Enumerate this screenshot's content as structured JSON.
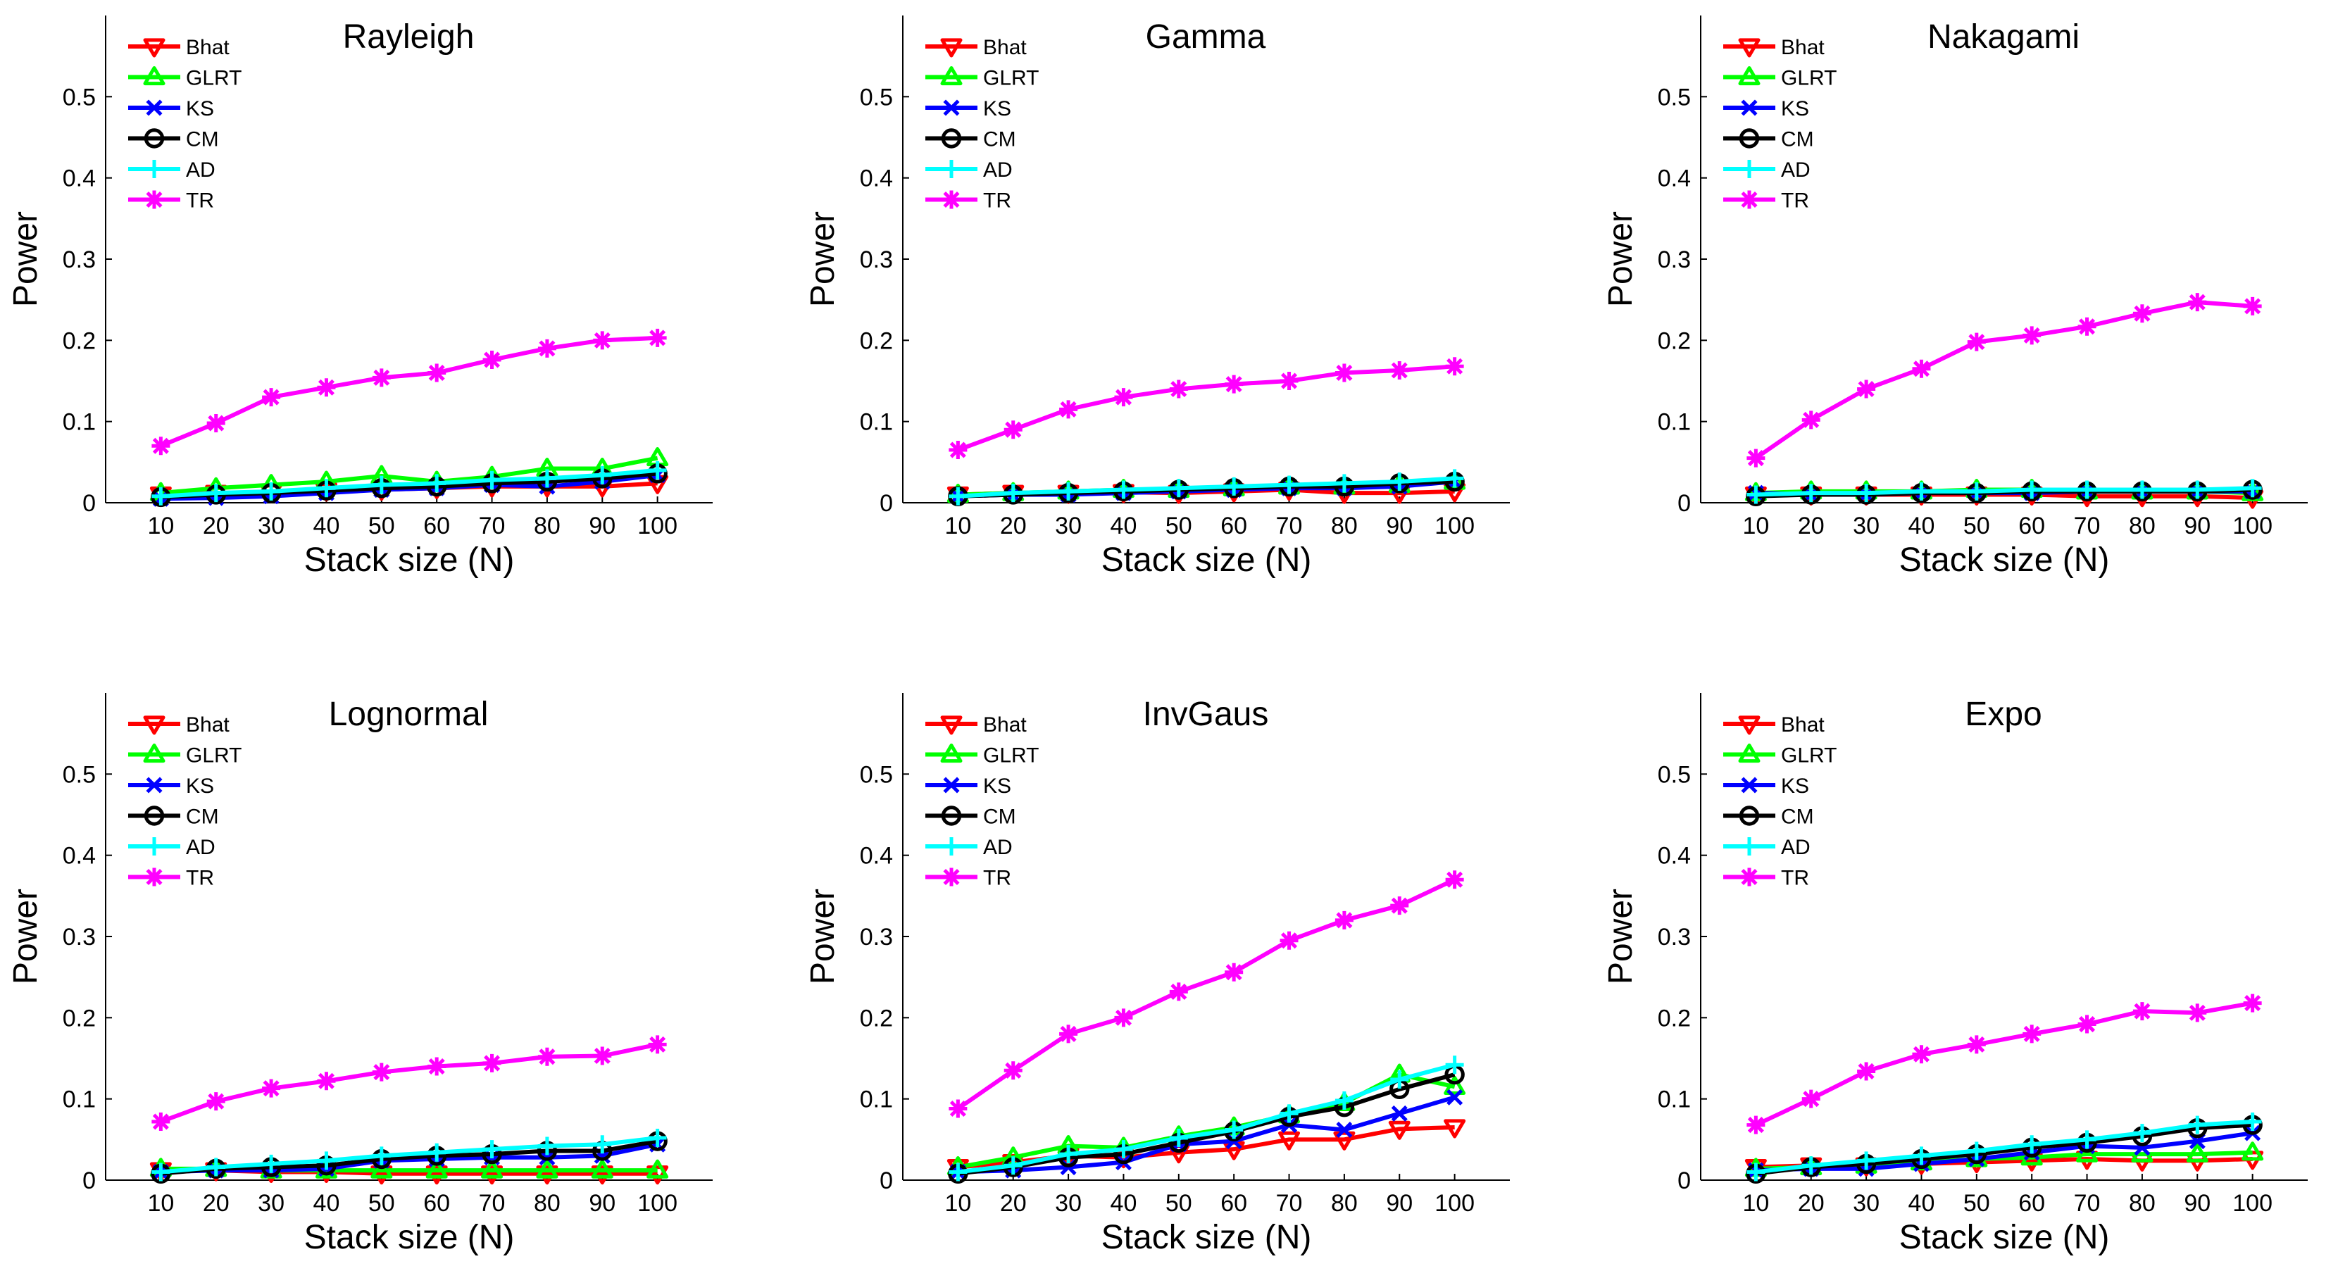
{
  "chart_data": [
    {
      "type": "line",
      "title": "Rayleigh",
      "xlabel": "Stack size (N)",
      "ylabel": "Power",
      "x": [
        10,
        20,
        30,
        40,
        50,
        60,
        70,
        80,
        90,
        100
      ],
      "xlim": [
        0,
        110
      ],
      "ylim": [
        0,
        0.6
      ],
      "yticks": [
        0,
        0.1,
        0.2,
        0.3,
        0.4,
        0.5
      ],
      "ytick_labels": [
        "0",
        "0.1",
        "0.2",
        "0.3",
        "0.4",
        "0.5"
      ],
      "legend_position": "top-left",
      "series": [
        {
          "name": "Bhat",
          "color": "#ff0000",
          "marker": "triangle-down",
          "values": [
            0.01,
            0.012,
            0.013,
            0.015,
            0.016,
            0.018,
            0.02,
            0.02,
            0.02,
            0.024
          ]
        },
        {
          "name": "GLRT",
          "color": "#00ff00",
          "marker": "triangle-up",
          "values": [
            0.012,
            0.018,
            0.022,
            0.026,
            0.033,
            0.026,
            0.032,
            0.042,
            0.042,
            0.055
          ]
        },
        {
          "name": "KS",
          "color": "#0000ff",
          "marker": "x",
          "values": [
            0.005,
            0.006,
            0.008,
            0.012,
            0.016,
            0.018,
            0.022,
            0.02,
            0.026,
            0.034
          ]
        },
        {
          "name": "CM",
          "color": "#000000",
          "marker": "circle",
          "values": [
            0.007,
            0.01,
            0.012,
            0.015,
            0.018,
            0.02,
            0.024,
            0.026,
            0.03,
            0.036
          ]
        },
        {
          "name": "AD",
          "color": "#00ffff",
          "marker": "plus",
          "values": [
            0.008,
            0.012,
            0.014,
            0.018,
            0.022,
            0.024,
            0.028,
            0.03,
            0.034,
            0.04
          ]
        },
        {
          "name": "TR",
          "color": "#ff00ff",
          "marker": "star",
          "values": [
            0.07,
            0.098,
            0.13,
            0.142,
            0.154,
            0.16,
            0.176,
            0.19,
            0.2,
            0.203
          ]
        }
      ]
    },
    {
      "type": "line",
      "title": "Gamma",
      "xlabel": "Stack size (N)",
      "ylabel": "Power",
      "x": [
        10,
        20,
        30,
        40,
        50,
        60,
        70,
        80,
        90,
        100
      ],
      "xlim": [
        0,
        110
      ],
      "ylim": [
        0,
        0.6
      ],
      "yticks": [
        0,
        0.1,
        0.2,
        0.3,
        0.4,
        0.5
      ],
      "ytick_labels": [
        "0",
        "0.1",
        "0.2",
        "0.3",
        "0.4",
        "0.5"
      ],
      "legend_position": "top-left",
      "series": [
        {
          "name": "Bhat",
          "color": "#ff0000",
          "marker": "triangle-down",
          "values": [
            0.01,
            0.012,
            0.012,
            0.013,
            0.012,
            0.014,
            0.016,
            0.012,
            0.012,
            0.014
          ]
        },
        {
          "name": "GLRT",
          "color": "#00ff00",
          "marker": "triangle-up",
          "values": [
            0.01,
            0.012,
            0.014,
            0.016,
            0.016,
            0.018,
            0.02,
            0.02,
            0.022,
            0.026
          ]
        },
        {
          "name": "KS",
          "color": "#0000ff",
          "marker": "x",
          "values": [
            0.008,
            0.01,
            0.01,
            0.012,
            0.014,
            0.016,
            0.018,
            0.018,
            0.02,
            0.026
          ]
        },
        {
          "name": "CM",
          "color": "#000000",
          "marker": "circle",
          "values": [
            0.008,
            0.01,
            0.012,
            0.014,
            0.016,
            0.018,
            0.02,
            0.02,
            0.024,
            0.026
          ]
        },
        {
          "name": "AD",
          "color": "#00ffff",
          "marker": "plus",
          "values": [
            0.008,
            0.012,
            0.014,
            0.016,
            0.018,
            0.02,
            0.022,
            0.024,
            0.026,
            0.03
          ]
        },
        {
          "name": "TR",
          "color": "#ff00ff",
          "marker": "star",
          "values": [
            0.065,
            0.09,
            0.115,
            0.13,
            0.14,
            0.146,
            0.15,
            0.16,
            0.163,
            0.168
          ]
        }
      ]
    },
    {
      "type": "line",
      "title": "Nakagami",
      "xlabel": "Stack size (N)",
      "ylabel": "Power",
      "x": [
        10,
        20,
        30,
        40,
        50,
        60,
        70,
        80,
        90,
        100
      ],
      "xlim": [
        0,
        110
      ],
      "ylim": [
        0,
        0.6
      ],
      "yticks": [
        0,
        0.1,
        0.2,
        0.3,
        0.4,
        0.5
      ],
      "ytick_labels": [
        "0",
        "0.1",
        "0.2",
        "0.3",
        "0.4",
        "0.5"
      ],
      "legend_position": "top-left",
      "series": [
        {
          "name": "Bhat",
          "color": "#ff0000",
          "marker": "triangle-down",
          "values": [
            0.01,
            0.01,
            0.01,
            0.01,
            0.01,
            0.01,
            0.008,
            0.008,
            0.008,
            0.006
          ]
        },
        {
          "name": "GLRT",
          "color": "#00ff00",
          "marker": "triangle-up",
          "values": [
            0.012,
            0.014,
            0.014,
            0.014,
            0.016,
            0.016,
            0.014,
            0.014,
            0.014,
            0.012
          ]
        },
        {
          "name": "KS",
          "color": "#0000ff",
          "marker": "x",
          "values": [
            0.012,
            0.01,
            0.01,
            0.012,
            0.012,
            0.012,
            0.014,
            0.014,
            0.014,
            0.014
          ]
        },
        {
          "name": "CM",
          "color": "#000000",
          "marker": "circle",
          "values": [
            0.008,
            0.01,
            0.01,
            0.012,
            0.012,
            0.014,
            0.014,
            0.014,
            0.014,
            0.016
          ]
        },
        {
          "name": "AD",
          "color": "#00ffff",
          "marker": "plus",
          "values": [
            0.01,
            0.012,
            0.012,
            0.014,
            0.014,
            0.016,
            0.016,
            0.016,
            0.016,
            0.018
          ]
        },
        {
          "name": "TR",
          "color": "#ff00ff",
          "marker": "star",
          "values": [
            0.055,
            0.102,
            0.14,
            0.165,
            0.198,
            0.206,
            0.217,
            0.233,
            0.247,
            0.242
          ]
        }
      ]
    },
    {
      "type": "line",
      "title": "Lognormal",
      "xlabel": "Stack size (N)",
      "ylabel": "Power",
      "x": [
        10,
        20,
        30,
        40,
        50,
        60,
        70,
        80,
        90,
        100
      ],
      "xlim": [
        0,
        110
      ],
      "ylim": [
        0,
        0.6
      ],
      "yticks": [
        0,
        0.1,
        0.2,
        0.3,
        0.4,
        0.5
      ],
      "ytick_labels": [
        "0",
        "0.1",
        "0.2",
        "0.3",
        "0.4",
        "0.5"
      ],
      "legend_position": "top-left",
      "series": [
        {
          "name": "Bhat",
          "color": "#ff0000",
          "marker": "triangle-down",
          "values": [
            0.012,
            0.012,
            0.01,
            0.01,
            0.008,
            0.008,
            0.008,
            0.008,
            0.008,
            0.008
          ]
        },
        {
          "name": "GLRT",
          "color": "#00ff00",
          "marker": "triangle-up",
          "values": [
            0.014,
            0.014,
            0.012,
            0.012,
            0.012,
            0.012,
            0.012,
            0.012,
            0.012,
            0.012
          ]
        },
        {
          "name": "KS",
          "color": "#0000ff",
          "marker": "x",
          "values": [
            0.01,
            0.012,
            0.012,
            0.014,
            0.024,
            0.026,
            0.028,
            0.028,
            0.03,
            0.044
          ]
        },
        {
          "name": "CM",
          "color": "#000000",
          "marker": "circle",
          "values": [
            0.008,
            0.014,
            0.016,
            0.018,
            0.026,
            0.03,
            0.032,
            0.036,
            0.036,
            0.048
          ]
        },
        {
          "name": "AD",
          "color": "#00ffff",
          "marker": "plus",
          "values": [
            0.01,
            0.016,
            0.02,
            0.024,
            0.03,
            0.034,
            0.038,
            0.042,
            0.044,
            0.052
          ]
        },
        {
          "name": "TR",
          "color": "#ff00ff",
          "marker": "star",
          "values": [
            0.072,
            0.097,
            0.113,
            0.122,
            0.133,
            0.14,
            0.144,
            0.152,
            0.153,
            0.167
          ]
        }
      ]
    },
    {
      "type": "line",
      "title": "InvGaus",
      "xlabel": "Stack size (N)",
      "ylabel": "Power",
      "x": [
        10,
        20,
        30,
        40,
        50,
        60,
        70,
        80,
        90,
        100
      ],
      "xlim": [
        0,
        110
      ],
      "ylim": [
        0,
        0.6
      ],
      "yticks": [
        0,
        0.1,
        0.2,
        0.3,
        0.4,
        0.5
      ],
      "ytick_labels": [
        "0",
        "0.1",
        "0.2",
        "0.3",
        "0.4",
        "0.5"
      ],
      "legend_position": "top-left",
      "series": [
        {
          "name": "Bhat",
          "color": "#ff0000",
          "marker": "triangle-down",
          "values": [
            0.016,
            0.022,
            0.03,
            0.028,
            0.034,
            0.038,
            0.05,
            0.05,
            0.063,
            0.065
          ]
        },
        {
          "name": "GLRT",
          "color": "#00ff00",
          "marker": "triangle-up",
          "values": [
            0.016,
            0.028,
            0.042,
            0.04,
            0.054,
            0.065,
            0.08,
            0.095,
            0.13,
            0.115
          ]
        },
        {
          "name": "KS",
          "color": "#0000ff",
          "marker": "x",
          "values": [
            0.01,
            0.012,
            0.016,
            0.022,
            0.044,
            0.048,
            0.068,
            0.062,
            0.082,
            0.102
          ]
        },
        {
          "name": "CM",
          "color": "#000000",
          "marker": "circle",
          "values": [
            0.008,
            0.016,
            0.028,
            0.032,
            0.046,
            0.06,
            0.078,
            0.09,
            0.112,
            0.13
          ]
        },
        {
          "name": "AD",
          "color": "#00ffff",
          "marker": "plus",
          "values": [
            0.01,
            0.018,
            0.032,
            0.038,
            0.052,
            0.062,
            0.082,
            0.098,
            0.124,
            0.142
          ]
        },
        {
          "name": "TR",
          "color": "#ff00ff",
          "marker": "star",
          "values": [
            0.088,
            0.135,
            0.18,
            0.2,
            0.232,
            0.256,
            0.295,
            0.32,
            0.338,
            0.37
          ]
        }
      ]
    },
    {
      "type": "line",
      "title": "Expo",
      "xlabel": "Stack size (N)",
      "ylabel": "Power",
      "x": [
        10,
        20,
        30,
        40,
        50,
        60,
        70,
        80,
        90,
        100
      ],
      "xlim": [
        0,
        110
      ],
      "ylim": [
        0,
        0.6
      ],
      "yticks": [
        0,
        0.1,
        0.2,
        0.3,
        0.4,
        0.5
      ],
      "ytick_labels": [
        "0",
        "0.1",
        "0.2",
        "0.3",
        "0.4",
        "0.5"
      ],
      "legend_position": "top-left",
      "series": [
        {
          "name": "Bhat",
          "color": "#ff0000",
          "marker": "triangle-down",
          "values": [
            0.016,
            0.018,
            0.018,
            0.02,
            0.022,
            0.024,
            0.026,
            0.024,
            0.024,
            0.026
          ]
        },
        {
          "name": "GLRT",
          "color": "#00ff00",
          "marker": "triangle-up",
          "values": [
            0.014,
            0.016,
            0.018,
            0.022,
            0.026,
            0.028,
            0.032,
            0.032,
            0.032,
            0.034
          ]
        },
        {
          "name": "KS",
          "color": "#0000ff",
          "marker": "x",
          "values": [
            0.012,
            0.014,
            0.014,
            0.02,
            0.026,
            0.034,
            0.042,
            0.04,
            0.048,
            0.058
          ]
        },
        {
          "name": "CM",
          "color": "#000000",
          "marker": "circle",
          "values": [
            0.008,
            0.016,
            0.02,
            0.026,
            0.032,
            0.04,
            0.046,
            0.054,
            0.064,
            0.068
          ]
        },
        {
          "name": "AD",
          "color": "#00ffff",
          "marker": "plus",
          "values": [
            0.01,
            0.018,
            0.024,
            0.03,
            0.036,
            0.044,
            0.05,
            0.058,
            0.068,
            0.072
          ]
        },
        {
          "name": "TR",
          "color": "#ff00ff",
          "marker": "star",
          "values": [
            0.068,
            0.1,
            0.134,
            0.155,
            0.167,
            0.18,
            0.192,
            0.208,
            0.206,
            0.218
          ]
        }
      ]
    }
  ]
}
